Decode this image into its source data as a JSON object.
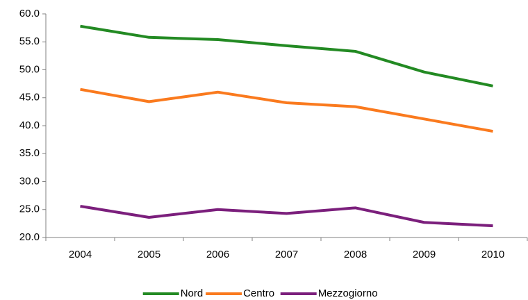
{
  "chart_data": {
    "type": "line",
    "categories": [
      "2004",
      "2005",
      "2006",
      "2007",
      "2008",
      "2009",
      "2010"
    ],
    "series": [
      {
        "name": "Nord",
        "color": "#238a23",
        "values": [
          57.8,
          55.8,
          55.4,
          54.3,
          53.3,
          49.6,
          47.1
        ]
      },
      {
        "name": "Centro",
        "color": "#fa7a1e",
        "values": [
          46.5,
          44.3,
          46.0,
          44.1,
          43.4,
          41.2,
          39.0
        ]
      },
      {
        "name": "Mezzogiorno",
        "color": "#7b1f7c",
        "values": [
          25.6,
          23.6,
          25.0,
          24.3,
          25.3,
          22.7,
          22.1
        ]
      }
    ],
    "ylim": [
      20,
      60
    ],
    "yticks": [
      {
        "value": 20,
        "label": "20.0"
      },
      {
        "value": 25,
        "label": "25.0"
      },
      {
        "value": 30,
        "label": "30.0"
      },
      {
        "value": 35,
        "label": "35.0"
      },
      {
        "value": 40,
        "label": "40.0"
      },
      {
        "value": 45,
        "label": "45.0"
      },
      {
        "value": 50,
        "label": "50.0"
      },
      {
        "value": 55,
        "label": "55.0"
      },
      {
        "value": 60,
        "label": "60.0"
      }
    ],
    "grid": false,
    "legend": "bottom"
  }
}
